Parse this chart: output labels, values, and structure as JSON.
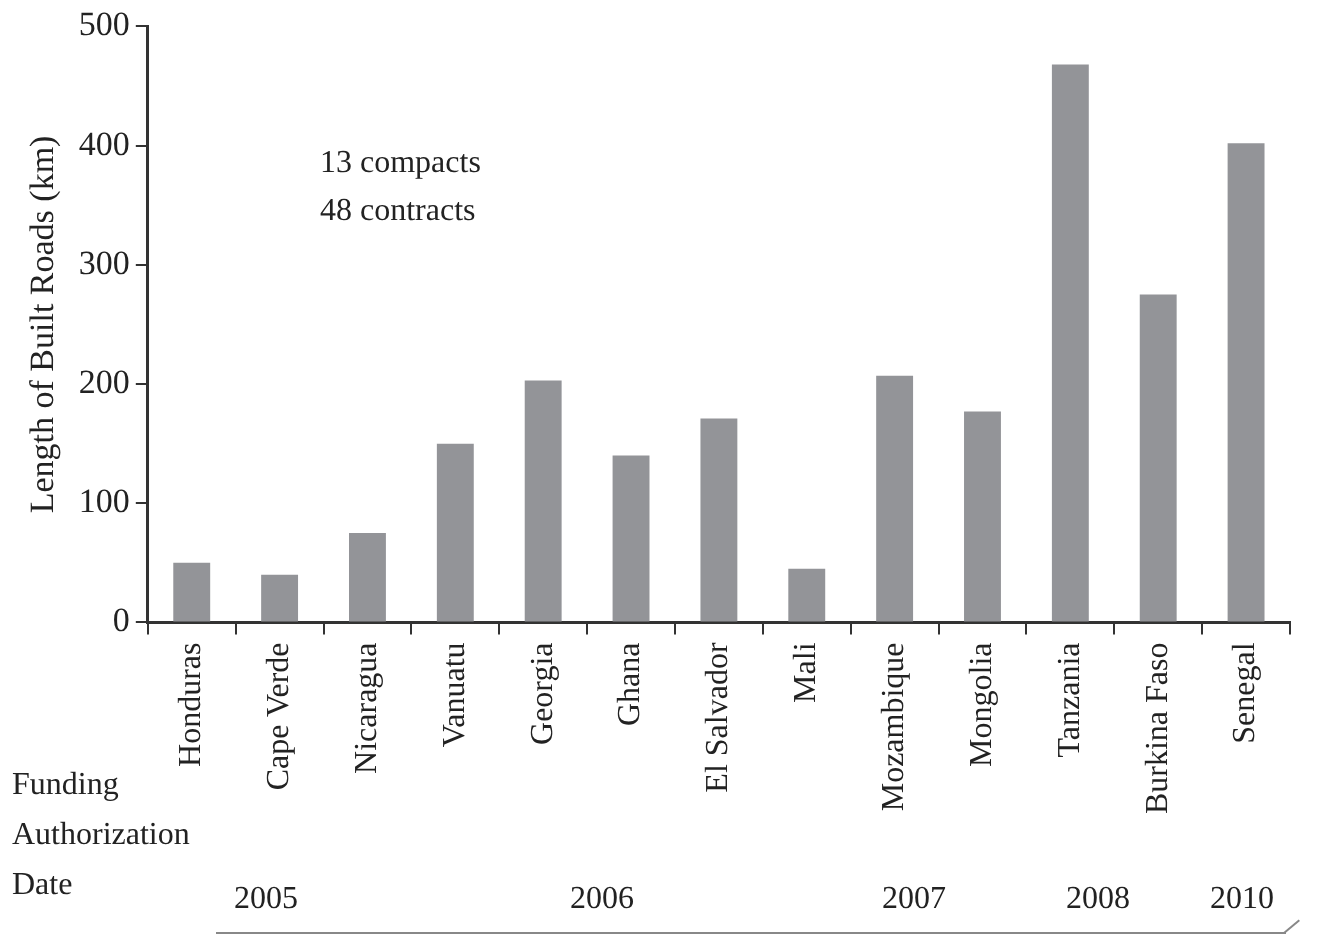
{
  "chart_data": {
    "type": "bar",
    "ylabel": "Length of Built Roads (km)",
    "categories": [
      "Honduras",
      "Cape Verde",
      "Nicaragua",
      "Vanuatu",
      "Georgia",
      "Ghana",
      "El Salvador",
      "Mali",
      "Mozambique",
      "Mongolia",
      "Tanzania",
      "Burkina Faso",
      "Senegal"
    ],
    "values": [
      50,
      40,
      75,
      150,
      203,
      140,
      171,
      45,
      207,
      177,
      468,
      275,
      402
    ],
    "color": "#939498",
    "ylim": [
      0,
      500
    ],
    "yticks": [
      0,
      100,
      200,
      300,
      400,
      500
    ],
    "grid": false,
    "legend": false,
    "annotations": [
      "13 compacts",
      "48 contracts",
      "Funding Authorization Date",
      "2005",
      "2006",
      "2007",
      "2008",
      "2010"
    ]
  }
}
